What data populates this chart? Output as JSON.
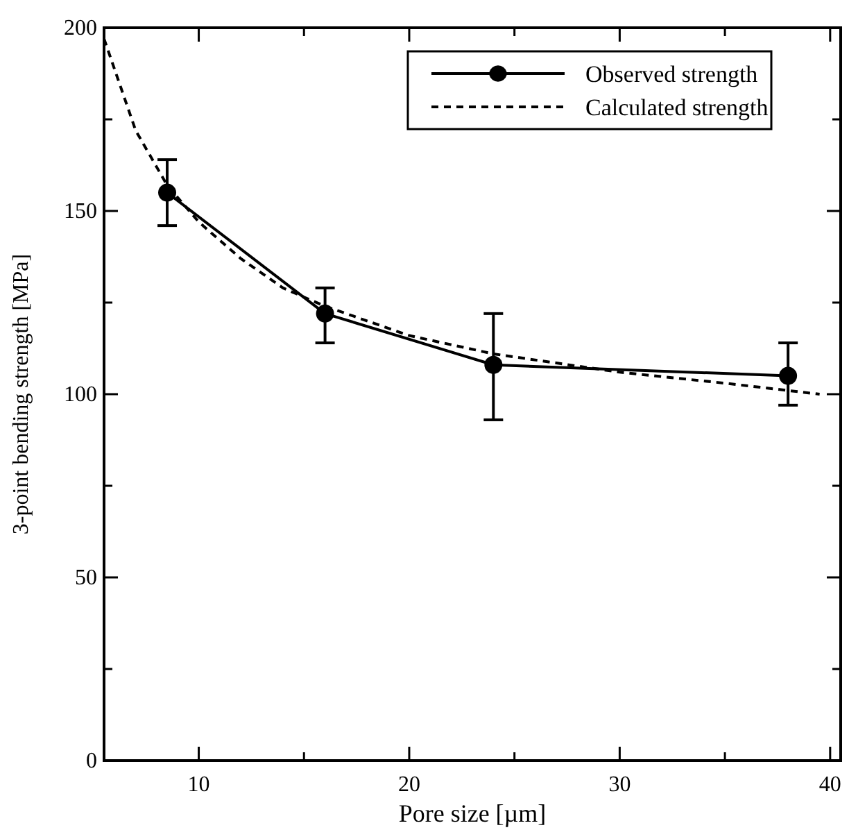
{
  "chart_data": {
    "type": "line",
    "xlabel": "Pore size [µm]",
    "ylabel": "3-point bending strength [MPa]",
    "xlim": [
      5.5,
      40.5
    ],
    "ylim": [
      0,
      200
    ],
    "xticks": [
      10,
      {
        "value": 15,
        "label": null
      },
      20,
      {
        "value": 25,
        "label": null
      },
      30,
      {
        "value": 35,
        "label": null
      },
      40
    ],
    "yticks": [
      0,
      {
        "value": 25,
        "label": null
      },
      50,
      {
        "value": 75,
        "label": null
      },
      100,
      {
        "value": 125,
        "label": null
      },
      150,
      {
        "value": 175,
        "label": null
      },
      200
    ],
    "grid": false,
    "legend": "top right",
    "series": [
      {
        "name": "Observed strength",
        "color": "#000000",
        "marker": "circle",
        "line_style": "solid",
        "x": [
          8.5,
          16,
          24,
          38
        ],
        "values": [
          155,
          122,
          108,
          105
        ],
        "errors": [
          [
            146,
            164
          ],
          [
            114,
            129
          ],
          [
            93,
            122
          ],
          [
            97,
            114
          ]
        ]
      },
      {
        "name": "Calculated strength",
        "color": "#000000",
        "marker": "none",
        "line_style": "dashed",
        "x": [
          5.5,
          7,
          8.5,
          10,
          12,
          14,
          16,
          20,
          24,
          30,
          35,
          39.5
        ],
        "values": [
          197,
          172,
          157,
          147,
          137,
          129,
          124,
          116,
          111,
          106,
          103,
          100
        ]
      }
    ]
  }
}
